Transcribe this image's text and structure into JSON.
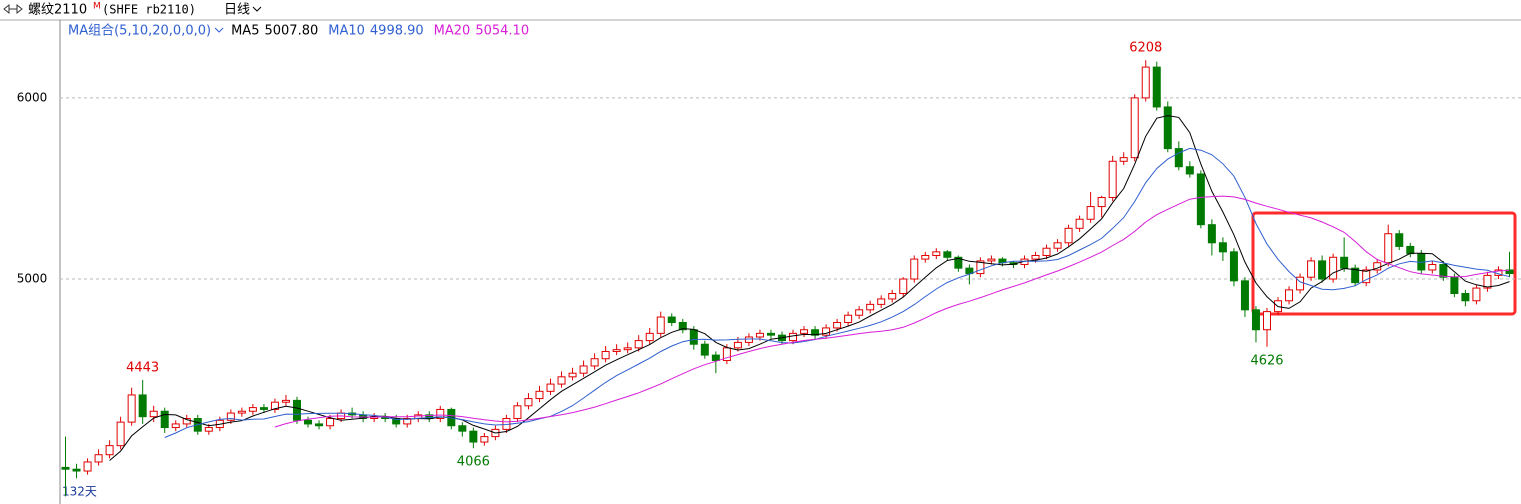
{
  "header": {
    "symbol": "螺纹2110",
    "badge": "M",
    "code": "(SHFE rb2110)",
    "period": "日线"
  },
  "chart_data": {
    "type": "candlestick",
    "indicator_group": "MA组合(5,10,20,0,0,0)",
    "indicators": [
      {
        "name": "MA5",
        "color": "#000000",
        "value": 5007.8,
        "value_label": "5007.80"
      },
      {
        "name": "MA10",
        "color": "#2f5fd0",
        "value": 4998.9,
        "value_label": "4998.90"
      },
      {
        "name": "MA20",
        "color": "#d81ed8",
        "value": 5054.1,
        "value_label": "5054.10"
      }
    ],
    "up_color": "#e00000",
    "down_color": "#007a00",
    "ylim": [
      3780,
      6430
    ],
    "yticks": [
      5000,
      6000
    ],
    "grid": true,
    "count_label": "132天",
    "annotations": [
      4443,
      4066,
      6208,
      4626
    ],
    "ohlc": [
      [
        3960,
        4130,
        3800,
        3950
      ],
      [
        3950,
        3980,
        3900,
        3940
      ],
      [
        3940,
        4010,
        3920,
        3990
      ],
      [
        3990,
        4060,
        3970,
        4030
      ],
      [
        4030,
        4110,
        4010,
        4080
      ],
      [
        4080,
        4240,
        4060,
        4210
      ],
      [
        4210,
        4400,
        4190,
        4360
      ],
      [
        4360,
        4443,
        4200,
        4240
      ],
      [
        4240,
        4300,
        4210,
        4270
      ],
      [
        4270,
        4290,
        4150,
        4180
      ],
      [
        4180,
        4220,
        4160,
        4200
      ],
      [
        4200,
        4250,
        4180,
        4230
      ],
      [
        4230,
        4250,
        4140,
        4160
      ],
      [
        4160,
        4200,
        4140,
        4180
      ],
      [
        4180,
        4240,
        4160,
        4220
      ],
      [
        4220,
        4280,
        4200,
        4260
      ],
      [
        4260,
        4290,
        4240,
        4270
      ],
      [
        4270,
        4310,
        4250,
        4290
      ],
      [
        4290,
        4310,
        4260,
        4280
      ],
      [
        4280,
        4340,
        4260,
        4320
      ],
      [
        4320,
        4360,
        4300,
        4330
      ],
      [
        4330,
        4350,
        4200,
        4220
      ],
      [
        4220,
        4240,
        4180,
        4200
      ],
      [
        4200,
        4220,
        4170,
        4190
      ],
      [
        4190,
        4250,
        4170,
        4230
      ],
      [
        4230,
        4280,
        4210,
        4260
      ],
      [
        4260,
        4290,
        4230,
        4250
      ],
      [
        4250,
        4270,
        4210,
        4230
      ],
      [
        4230,
        4260,
        4210,
        4240
      ],
      [
        4240,
        4260,
        4210,
        4230
      ],
      [
        4230,
        4250,
        4180,
        4200
      ],
      [
        4200,
        4250,
        4180,
        4230
      ],
      [
        4230,
        4270,
        4210,
        4250
      ],
      [
        4250,
        4270,
        4210,
        4230
      ],
      [
        4230,
        4300,
        4210,
        4280
      ],
      [
        4280,
        4290,
        4170,
        4190
      ],
      [
        4190,
        4210,
        4130,
        4160
      ],
      [
        4160,
        4180,
        4066,
        4100
      ],
      [
        4100,
        4150,
        4080,
        4130
      ],
      [
        4130,
        4190,
        4110,
        4170
      ],
      [
        4170,
        4250,
        4150,
        4230
      ],
      [
        4230,
        4320,
        4210,
        4300
      ],
      [
        4300,
        4370,
        4280,
        4340
      ],
      [
        4340,
        4410,
        4320,
        4380
      ],
      [
        4380,
        4450,
        4360,
        4420
      ],
      [
        4420,
        4490,
        4400,
        4460
      ],
      [
        4460,
        4510,
        4440,
        4480
      ],
      [
        4480,
        4550,
        4460,
        4520
      ],
      [
        4520,
        4590,
        4500,
        4560
      ],
      [
        4560,
        4630,
        4540,
        4600
      ],
      [
        4600,
        4640,
        4580,
        4610
      ],
      [
        4610,
        4650,
        4590,
        4620
      ],
      [
        4620,
        4690,
        4600,
        4660
      ],
      [
        4660,
        4730,
        4640,
        4700
      ],
      [
        4700,
        4820,
        4680,
        4790
      ],
      [
        4790,
        4810,
        4740,
        4760
      ],
      [
        4760,
        4780,
        4700,
        4720
      ],
      [
        4720,
        4740,
        4610,
        4640
      ],
      [
        4640,
        4660,
        4560,
        4580
      ],
      [
        4580,
        4600,
        4480,
        4550
      ],
      [
        4550,
        4640,
        4530,
        4620
      ],
      [
        4620,
        4680,
        4600,
        4650
      ],
      [
        4650,
        4700,
        4630,
        4680
      ],
      [
        4680,
        4720,
        4660,
        4700
      ],
      [
        4700,
        4720,
        4670,
        4690
      ],
      [
        4690,
        4710,
        4640,
        4660
      ],
      [
        4660,
        4720,
        4640,
        4700
      ],
      [
        4700,
        4740,
        4680,
        4720
      ],
      [
        4720,
        4740,
        4670,
        4690
      ],
      [
        4690,
        4750,
        4670,
        4730
      ],
      [
        4730,
        4780,
        4710,
        4760
      ],
      [
        4760,
        4820,
        4740,
        4800
      ],
      [
        4800,
        4850,
        4780,
        4830
      ],
      [
        4830,
        4880,
        4810,
        4860
      ],
      [
        4860,
        4910,
        4840,
        4890
      ],
      [
        4890,
        4940,
        4870,
        4920
      ],
      [
        4920,
        5010,
        4900,
        5000
      ],
      [
        5000,
        5130,
        4980,
        5110
      ],
      [
        5110,
        5150,
        5090,
        5130
      ],
      [
        5130,
        5170,
        5110,
        5150
      ],
      [
        5150,
        5160,
        5100,
        5120
      ],
      [
        5120,
        5130,
        5040,
        5060
      ],
      [
        5060,
        5080,
        4970,
        5030
      ],
      [
        5030,
        5120,
        5010,
        5100
      ],
      [
        5100,
        5130,
        5080,
        5110
      ],
      [
        5110,
        5120,
        5070,
        5090
      ],
      [
        5090,
        5100,
        5060,
        5080
      ],
      [
        5080,
        5130,
        5060,
        5110
      ],
      [
        5110,
        5150,
        5090,
        5130
      ],
      [
        5130,
        5190,
        5110,
        5170
      ],
      [
        5170,
        5220,
        5150,
        5200
      ],
      [
        5200,
        5300,
        5180,
        5280
      ],
      [
        5280,
        5350,
        5260,
        5330
      ],
      [
        5330,
        5480,
        5310,
        5400
      ],
      [
        5400,
        5460,
        5340,
        5450
      ],
      [
        5450,
        5680,
        5430,
        5650
      ],
      [
        5650,
        5700,
        5630,
        5670
      ],
      [
        5670,
        6020,
        5650,
        6000
      ],
      [
        6000,
        6208,
        5980,
        6170
      ],
      [
        6170,
        6200,
        5930,
        5950
      ],
      [
        5950,
        5980,
        5700,
        5720
      ],
      [
        5720,
        5760,
        5600,
        5620
      ],
      [
        5620,
        5650,
        5560,
        5580
      ],
      [
        5580,
        5600,
        5280,
        5300
      ],
      [
        5300,
        5330,
        5130,
        5200
      ],
      [
        5200,
        5230,
        5100,
        5150
      ],
      [
        5150,
        5170,
        4960,
        4990
      ],
      [
        4990,
        5010,
        4790,
        4830
      ],
      [
        4830,
        4850,
        4650,
        4720
      ],
      [
        4720,
        4840,
        4626,
        4820
      ],
      [
        4820,
        4900,
        4800,
        4880
      ],
      [
        4880,
        4960,
        4860,
        4940
      ],
      [
        4940,
        5030,
        4920,
        5010
      ],
      [
        5010,
        5120,
        4990,
        5100
      ],
      [
        5100,
        5130,
        4980,
        5000
      ],
      [
        5000,
        5140,
        4980,
        5120
      ],
      [
        5120,
        5230,
        5040,
        5060
      ],
      [
        5060,
        5080,
        4960,
        4980
      ],
      [
        4980,
        5070,
        4960,
        5050
      ],
      [
        5050,
        5110,
        5030,
        5090
      ],
      [
        5090,
        5300,
        5070,
        5250
      ],
      [
        5250,
        5270,
        5160,
        5180
      ],
      [
        5180,
        5200,
        5120,
        5140
      ],
      [
        5140,
        5160,
        5030,
        5050
      ],
      [
        5050,
        5100,
        5030,
        5080
      ],
      [
        5080,
        5100,
        4990,
        5010
      ],
      [
        5010,
        5030,
        4900,
        4920
      ],
      [
        4920,
        4940,
        4850,
        4880
      ],
      [
        4880,
        4970,
        4860,
        4950
      ],
      [
        4950,
        5040,
        4930,
        5020
      ],
      [
        5020,
        5070,
        5000,
        5050
      ],
      [
        5050,
        5150,
        5010,
        5030
      ]
    ]
  }
}
